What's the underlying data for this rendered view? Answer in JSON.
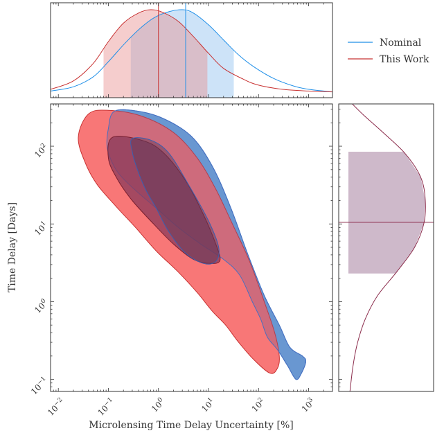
{
  "chart_data": {
    "type": "contour",
    "xlabel": "Microlensing Time Delay Uncertainty [%]",
    "ylabel": "Time Delay [Days]",
    "xscale": "log",
    "yscale": "log",
    "xlim": [
      0.007,
      3000
    ],
    "ylim": [
      0.07,
      350
    ],
    "x_ticks": [
      {
        "v": 0.01,
        "base": "10",
        "exp": "−2"
      },
      {
        "v": 0.1,
        "base": "10",
        "exp": "−1"
      },
      {
        "v": 1,
        "base": "10",
        "exp": "0"
      },
      {
        "v": 10,
        "base": "10",
        "exp": "1"
      },
      {
        "v": 100,
        "base": "10",
        "exp": "2"
      },
      {
        "v": 1000,
        "base": "10",
        "exp": "3"
      }
    ],
    "y_ticks": [
      {
        "v": 0.1,
        "base": "10",
        "exp": "−1"
      },
      {
        "v": 1,
        "base": "10",
        "exp": "0"
      },
      {
        "v": 10,
        "base": "10",
        "exp": "1"
      },
      {
        "v": 100,
        "base": "10",
        "exp": "2"
      }
    ],
    "legend": {
      "placement": "top-right",
      "entries": [
        "Nominal",
        "This Work"
      ]
    },
    "series": [
      {
        "name": "Nominal",
        "color": "#1f8fe8",
        "fill_outer": "#5ab4f4",
        "marginal_x": {
          "median": 3.5,
          "band": [
            0.28,
            32
          ],
          "curve": [
            [
              0.007,
              0.03
            ],
            [
              0.02,
              0.08
            ],
            [
              0.05,
              0.2
            ],
            [
              0.1,
              0.38
            ],
            [
              0.2,
              0.58
            ],
            [
              0.4,
              0.76
            ],
            [
              0.8,
              0.9
            ],
            [
              1.5,
              0.97
            ],
            [
              3,
              1.0
            ],
            [
              5,
              0.96
            ],
            [
              10,
              0.82
            ],
            [
              20,
              0.64
            ],
            [
              40,
              0.46
            ],
            [
              80,
              0.32
            ],
            [
              200,
              0.18
            ],
            [
              500,
              0.09
            ],
            [
              1000,
              0.05
            ],
            [
              3000,
              0.02
            ]
          ]
        },
        "contour_outer": [
          [
            0.13,
            280
          ],
          [
            0.35,
            285
          ],
          [
            1.2,
            230
          ],
          [
            4.5,
            135
          ],
          [
            12,
            55
          ],
          [
            28,
            16
          ],
          [
            60,
            4.2
          ],
          [
            130,
            1.2
          ],
          [
            260,
            0.5
          ],
          [
            420,
            0.26
          ],
          [
            750,
            0.2
          ],
          [
            880,
            0.17
          ],
          [
            720,
            0.12
          ],
          [
            560,
            0.1
          ],
          [
            380,
            0.15
          ],
          [
            240,
            0.24
          ],
          [
            150,
            0.35
          ],
          [
            110,
            0.6
          ],
          [
            75,
            1
          ],
          [
            42,
            2.2
          ],
          [
            20,
            3.5
          ],
          [
            7,
            5.5
          ],
          [
            2.5,
            9
          ],
          [
            0.9,
            16
          ],
          [
            0.4,
            25
          ],
          [
            0.2,
            38
          ],
          [
            0.13,
            55
          ],
          [
            0.095,
            95
          ],
          [
            0.1,
            170
          ]
        ],
        "contour_inner": [
          [
            0.3,
            125
          ],
          [
            0.7,
            120
          ],
          [
            1.6,
            82
          ],
          [
            4,
            32
          ],
          [
            10,
            11
          ],
          [
            16,
            5
          ],
          [
            14,
            3.3
          ],
          [
            8,
            3.1
          ],
          [
            3.5,
            4.2
          ],
          [
            1.6,
            8
          ],
          [
            0.9,
            16
          ],
          [
            0.55,
            28
          ],
          [
            0.38,
            50
          ],
          [
            0.3,
            85
          ]
        ]
      },
      {
        "name": "This Work",
        "color": "#c83232",
        "fill_outer": "#f87070",
        "marginal_x": {
          "median": 1.0,
          "band": [
            0.08,
            9.5
          ],
          "curve": [
            [
              0.007,
              0.05
            ],
            [
              0.02,
              0.15
            ],
            [
              0.05,
              0.36
            ],
            [
              0.1,
              0.62
            ],
            [
              0.2,
              0.84
            ],
            [
              0.4,
              0.96
            ],
            [
              0.7,
              1.0
            ],
            [
              1.2,
              0.97
            ],
            [
              2.5,
              0.86
            ],
            [
              5,
              0.68
            ],
            [
              10,
              0.48
            ],
            [
              20,
              0.3
            ],
            [
              50,
              0.17
            ],
            [
              100,
              0.1
            ],
            [
              300,
              0.05
            ],
            [
              1000,
              0.03
            ],
            [
              3000,
              0.02
            ]
          ]
        },
        "marginal_y": {
          "median": 10.5,
          "band": [
            2.3,
            85
          ],
          "curve": [
            [
              0.07,
              0.02
            ],
            [
              0.15,
              0.06
            ],
            [
              0.3,
              0.12
            ],
            [
              0.6,
              0.22
            ],
            [
              1.2,
              0.38
            ],
            [
              2.5,
              0.64
            ],
            [
              5,
              0.86
            ],
            [
              10,
              0.98
            ],
            [
              20,
              1.0
            ],
            [
              40,
              0.94
            ],
            [
              80,
              0.74
            ],
            [
              150,
              0.45
            ],
            [
              250,
              0.2
            ],
            [
              350,
              0.05
            ]
          ]
        },
        "contour_outer": [
          [
            0.04,
            260
          ],
          [
            0.1,
            290
          ],
          [
            0.45,
            245
          ],
          [
            2,
            150
          ],
          [
            6,
            70
          ],
          [
            14,
            28
          ],
          [
            30,
            10
          ],
          [
            65,
            3.4
          ],
          [
            130,
            1
          ],
          [
            210,
            0.4
          ],
          [
            260,
            0.2
          ],
          [
            240,
            0.14
          ],
          [
            170,
            0.12
          ],
          [
            80,
            0.18
          ],
          [
            40,
            0.3
          ],
          [
            22,
            0.5
          ],
          [
            12,
            0.75
          ],
          [
            6,
            1.3
          ],
          [
            2.5,
            2.4
          ],
          [
            0.9,
            4.5
          ],
          [
            0.35,
            9
          ],
          [
            0.14,
            17
          ],
          [
            0.06,
            32
          ],
          [
            0.035,
            60
          ],
          [
            0.025,
            130
          ]
        ],
        "contour_inner": [
          [
            0.12,
            130
          ],
          [
            0.45,
            120
          ],
          [
            1.2,
            85
          ],
          [
            3.5,
            36
          ],
          [
            8,
            13
          ],
          [
            14,
            5.5
          ],
          [
            17,
            3.4
          ],
          [
            11,
            3.1
          ],
          [
            5,
            3.5
          ],
          [
            2,
            5.5
          ],
          [
            0.8,
            10
          ],
          [
            0.3,
            20
          ],
          [
            0.15,
            38
          ],
          [
            0.1,
            70
          ]
        ]
      }
    ]
  }
}
